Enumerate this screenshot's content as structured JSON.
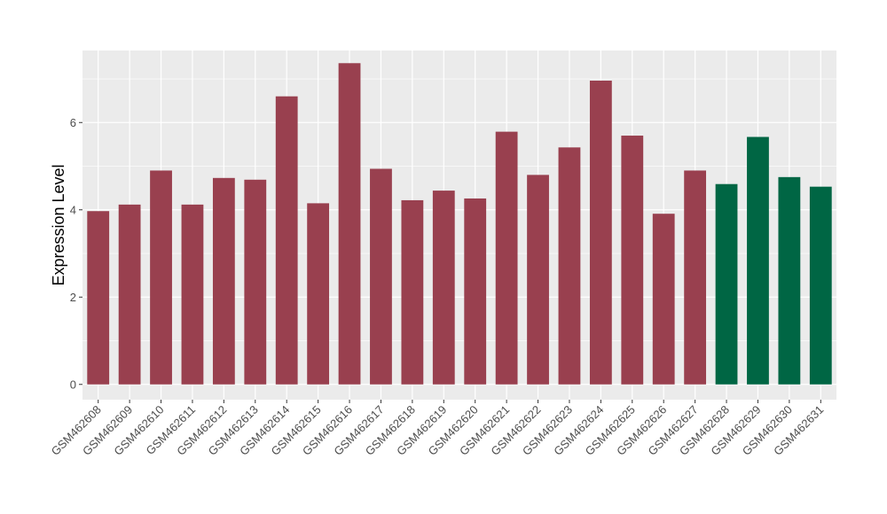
{
  "chart_data": {
    "type": "bar",
    "title": "",
    "xlabel": "",
    "ylabel": "Expression Level",
    "ylim": [
      -0.35,
      7.65
    ],
    "yticks": [
      0,
      2,
      4,
      6
    ],
    "grid": true,
    "colors": {
      "panel": "#ebebeb",
      "grid": "#ffffff",
      "group_a": "#99404f",
      "group_b": "#006644"
    },
    "categories": [
      "GSM462608",
      "GSM462609",
      "GSM462610",
      "GSM462611",
      "GSM462612",
      "GSM462613",
      "GSM462614",
      "GSM462615",
      "GSM462616",
      "GSM462617",
      "GSM462618",
      "GSM462619",
      "GSM462620",
      "GSM462621",
      "GSM462622",
      "GSM462623",
      "GSM462624",
      "GSM462625",
      "GSM462626",
      "GSM462627",
      "GSM462628",
      "GSM462629",
      "GSM462630",
      "GSM462631"
    ],
    "values": [
      3.97,
      4.12,
      4.9,
      4.12,
      4.73,
      4.69,
      6.6,
      4.15,
      7.36,
      4.94,
      4.22,
      4.44,
      4.26,
      5.79,
      4.8,
      5.43,
      6.96,
      5.7,
      3.91,
      4.9,
      4.59,
      5.67,
      4.75,
      4.53
    ],
    "groups": [
      "a",
      "a",
      "a",
      "a",
      "a",
      "a",
      "a",
      "a",
      "a",
      "a",
      "a",
      "a",
      "a",
      "a",
      "a",
      "a",
      "a",
      "a",
      "a",
      "a",
      "b",
      "b",
      "b",
      "b"
    ]
  }
}
